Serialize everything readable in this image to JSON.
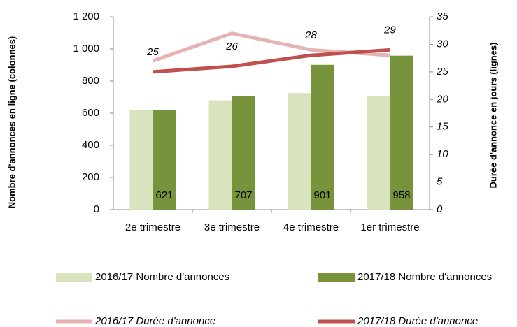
{
  "chart_data": {
    "type": "combo",
    "categories": [
      "2e trimestre",
      "3e trimestre",
      "4e trimestre",
      "1er trimestre"
    ],
    "ylabel": "Nombre d'annonces en ligne (colonnes)",
    "y2label": "Durée d'annonce en jours (lignes)",
    "ylim": [
      0,
      1200
    ],
    "yticks": [
      0,
      200,
      400,
      600,
      800,
      {
        "value": 1000,
        "label": "1 000"
      },
      {
        "value": 1200,
        "label": "1 200"
      }
    ],
    "y2lim": [
      0,
      35
    ],
    "y2ticks": [
      0,
      5,
      10,
      15,
      20,
      25,
      30,
      35
    ],
    "series": [
      {
        "name": "2016/17 Nombre d'annonces",
        "type": "bar",
        "color": "#d7e4bd",
        "values": [
          620,
          680,
          725,
          705
        ],
        "labels": false
      },
      {
        "name": "2017/18 Nombre d'annonces",
        "type": "bar",
        "color": "#77933c",
        "values": [
          621,
          707,
          901,
          958
        ],
        "labels": true
      },
      {
        "name": "2016/17 Durée d'annonce",
        "type": "line",
        "axis": "y2",
        "color": "#e6b3b3",
        "values": [
          27,
          32,
          29,
          28
        ],
        "labels": false
      },
      {
        "name": "2017/18 Durée d'annonce",
        "type": "line",
        "axis": "y2",
        "color": "#c0504d",
        "values": [
          25,
          26,
          28,
          29
        ],
        "labels": true
      }
    ]
  }
}
